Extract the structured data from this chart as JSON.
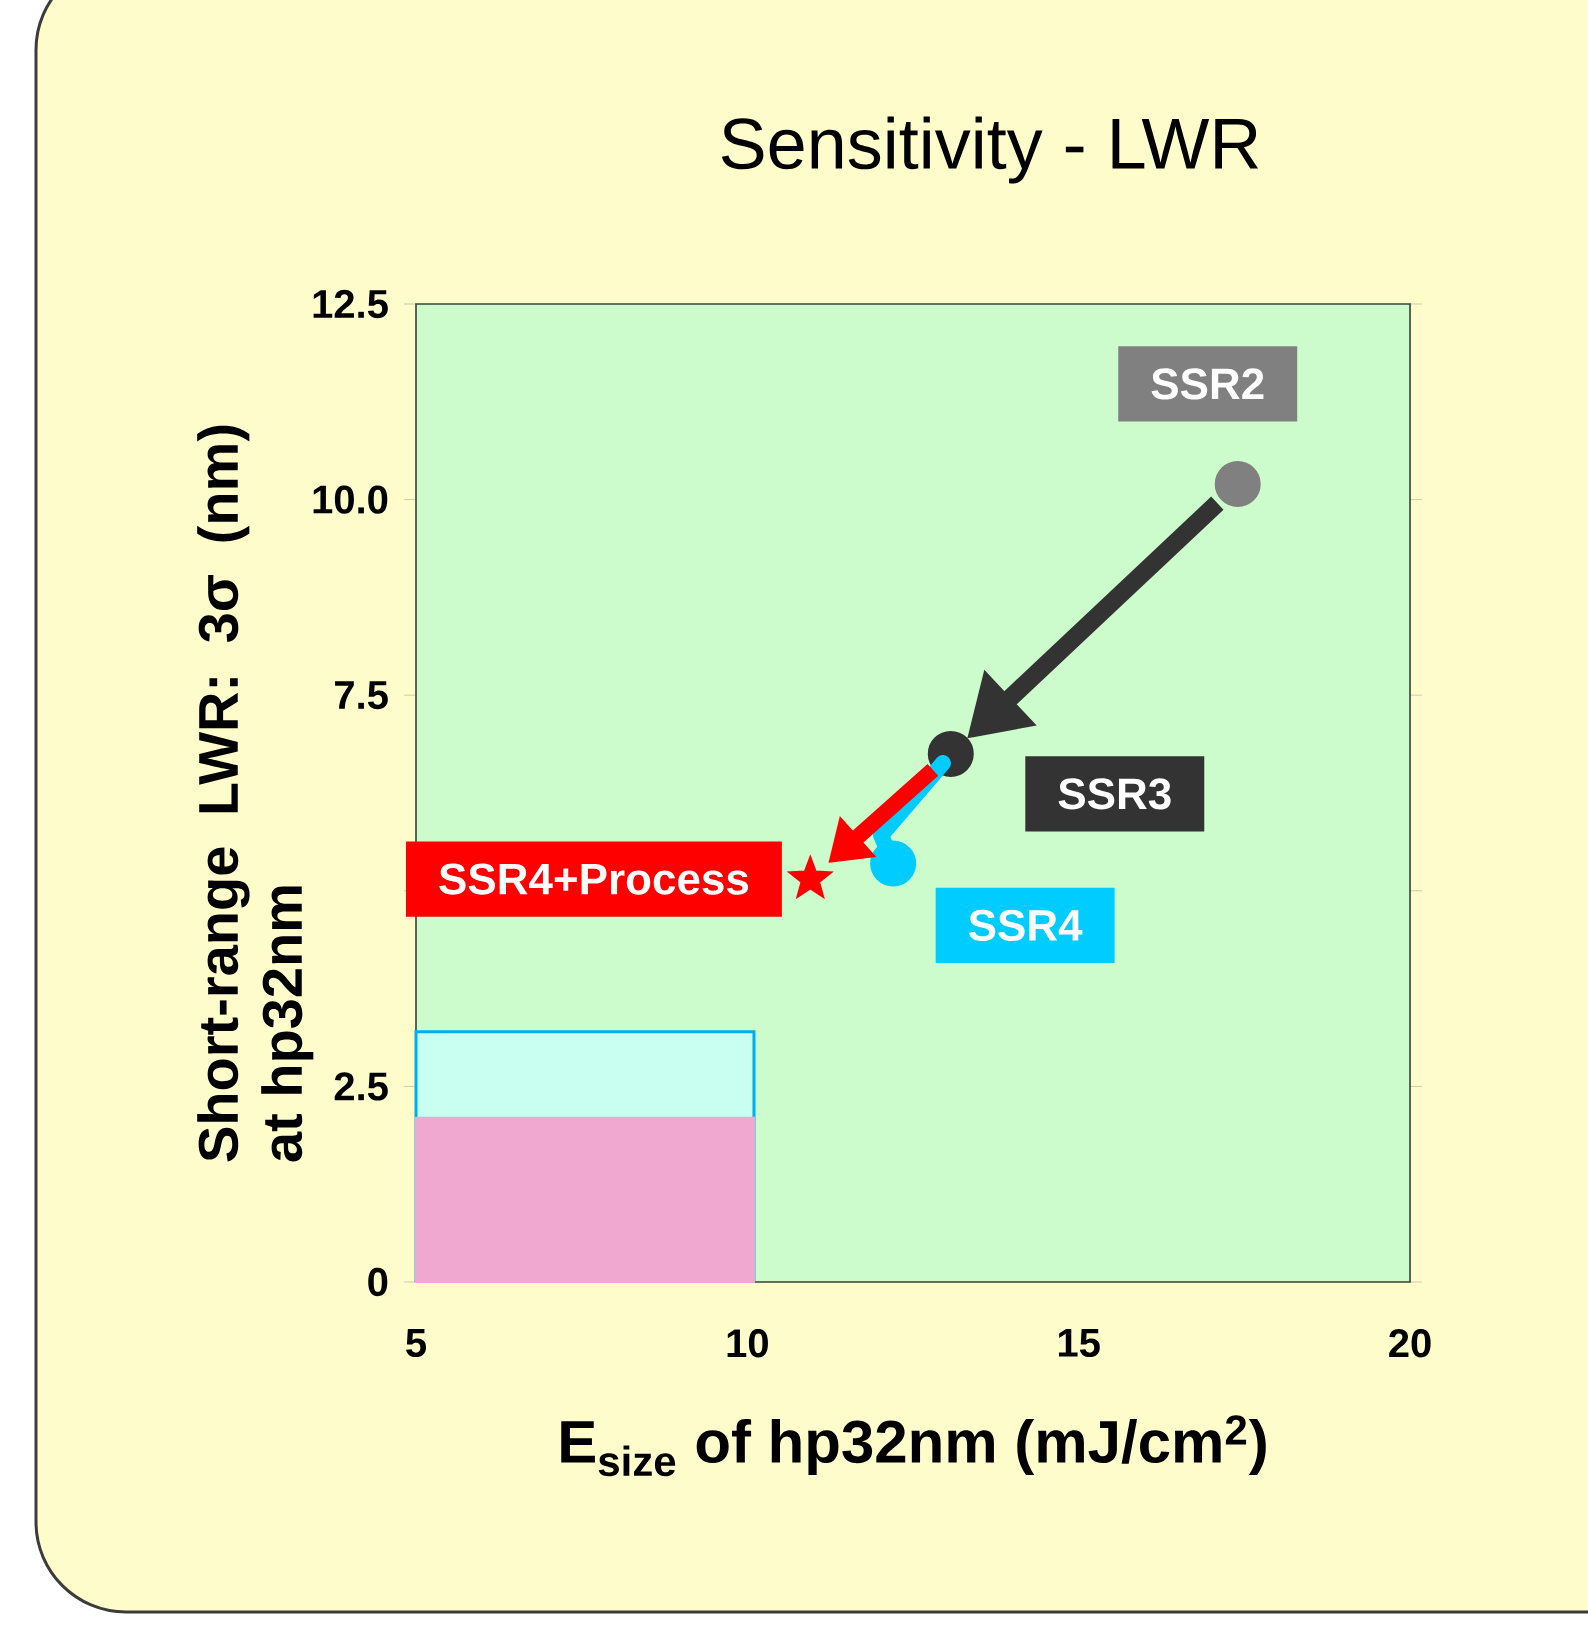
{
  "chart_data": {
    "type": "scatter",
    "title": "Sensitivity - LWR",
    "xlabel": "E$_{size}$ of hp32nm (mJ/cm$^{2}$)",
    "ylabel": "Short-range LWR: 3σ (nm) at hp32nm",
    "xlim": [
      5,
      20
    ],
    "ylim": [
      0,
      12.5
    ],
    "xticks": [
      5,
      10,
      15,
      20
    ],
    "yticks": [
      0,
      2.5,
      {
        "value": 5,
        "label": null
      },
      7.5,
      {
        "value": 10,
        "label": "10.0"
      },
      12.5
    ],
    "grid": false,
    "series": [
      {
        "type": "area",
        "color": "#c8fff0",
        "x": [
          5,
          10.1
        ],
        "values": [
          3.2,
          3.2
        ]
      },
      {
        "type": "area",
        "color": "#f0a8d0",
        "x": [
          5,
          10.1
        ],
        "values": [
          2.1,
          2.1
        ]
      },
      {
        "name": "SSR2",
        "color": "#808080",
        "marker": "circle",
        "x": [
          17.4
        ],
        "values": [
          10.2
        ]
      },
      {
        "name": "SSR3",
        "color": "#333333",
        "marker": "circle",
        "x": [
          13.07
        ],
        "values": [
          6.75
        ]
      },
      {
        "name": "SSR4",
        "color": "#00ccff",
        "marker": "circle",
        "x": [
          12.2
        ],
        "values": [
          5.35
        ]
      },
      {
        "name": "SSR4+Process",
        "color": "#ff0000",
        "marker": "star",
        "x": [
          10.95
        ],
        "values": [
          5.15
        ]
      }
    ]
  }
}
